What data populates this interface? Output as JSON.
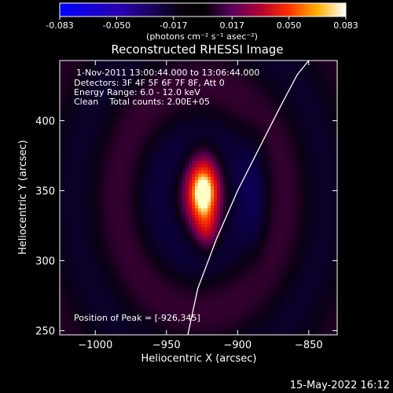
{
  "colorbar": {
    "tick_labels": [
      "-0.083",
      "-0.050",
      "-0.017",
      "0.017",
      "0.050",
      "0.083"
    ],
    "ticks": [
      -0.083,
      -0.05,
      -0.017,
      0.017,
      0.05,
      0.083
    ],
    "range": [
      -0.083,
      0.083
    ],
    "unit_label": "(photons cm⁻² s⁻¹ asec⁻²)"
  },
  "chart_data": {
    "type": "heatmap",
    "title": "Reconstructed RHESSI Image",
    "xlabel": "Heliocentric X (arcsec)",
    "ylabel": "Heliocentric Y (arcsec)",
    "xlim": [
      -1025,
      -830
    ],
    "ylim": [
      247,
      443
    ],
    "x_ticks": [
      -1000,
      -950,
      -900,
      -850
    ],
    "x_tick_labels": [
      "−1000",
      "−950",
      "−900",
      "−850"
    ],
    "y_ticks": [
      250,
      300,
      350,
      400
    ],
    "y_tick_labels": [
      "250",
      "300",
      "350",
      "400"
    ],
    "annotations": [
      "1-Nov-2011 13:00:44.000 to 13:06:44.000",
      "Detectors: 3F 4F 5F 6F 7F 8F, Att 0",
      "Energy Range: 6.0 - 12.0 keV",
      "Clean    Total counts: 2.00E+05"
    ],
    "peak_label": "Position of Peak = [-926,345]",
    "peak_position": [
      -926,
      345
    ],
    "peak_value": 0.083,
    "grid": false,
    "colormap": "blue-black-purple-red-yellow-white",
    "limb_curve": {
      "x": [
        -935,
        -928,
        -915,
        -900,
        -885,
        -870,
        -858,
        -850
      ],
      "y": [
        247,
        280,
        315,
        350,
        380,
        410,
        433,
        443
      ]
    }
  },
  "footer": {
    "timestamp": "15-May-2022 16:12"
  }
}
